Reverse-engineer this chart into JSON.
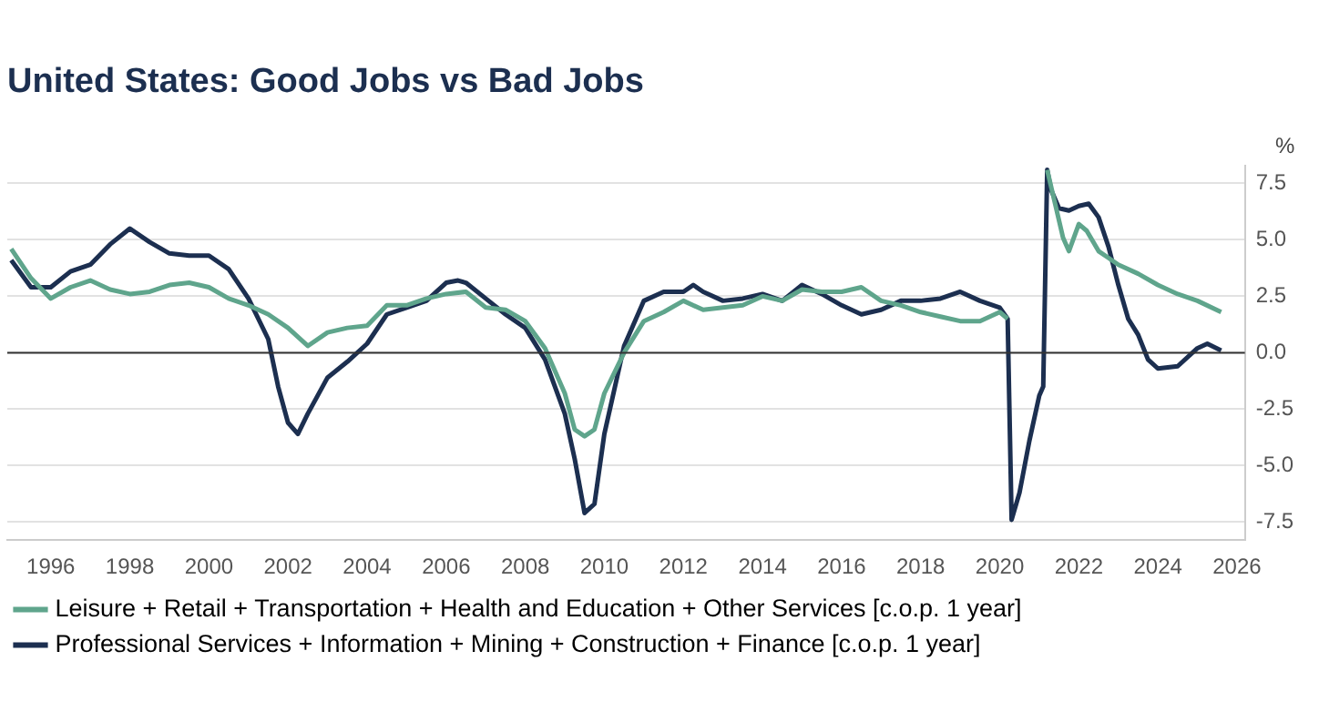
{
  "chart_data": {
    "type": "line",
    "title": "United States: Good Jobs vs Bad Jobs",
    "ylabel": "%",
    "xlim": [
      1994.9,
      2026.2
    ],
    "xticks": [
      1996,
      1998,
      2000,
      2002,
      2004,
      2006,
      2008,
      2010,
      2012,
      2014,
      2016,
      2018,
      2020,
      2022,
      2024,
      2026
    ],
    "ylim": [
      -8.3,
      8.3
    ],
    "yticks": [
      {
        "value": -7.5,
        "label": "-7.5"
      },
      {
        "value": -5,
        "label": "-5.0"
      },
      {
        "value": -2.5,
        "label": "-2.5"
      },
      {
        "value": 0,
        "label": "0.0"
      },
      {
        "value": 2.5,
        "label": "2.5"
      },
      {
        "value": 5,
        "label": "5.0"
      },
      {
        "value": 7.5,
        "label": "7.5"
      }
    ],
    "grid": "y",
    "legend": "bottom",
    "marker": "none",
    "line_style": "solid",
    "ref_lines": [
      {
        "axis": "y",
        "value": 0,
        "color": "#333333"
      }
    ],
    "series": [
      {
        "name": "Leisure + Retail + Transportation + Health and Education + Other Services [c.o.p. 1 year]",
        "color": "#5fa58c",
        "x": [
          1995.0,
          1995.5,
          1996.0,
          1996.5,
          1997.0,
          1997.5,
          1998.0,
          1998.5,
          1999.0,
          1999.5,
          2000.0,
          2000.5,
          2001.0,
          2001.5,
          2002.0,
          2002.5,
          2003.0,
          2003.5,
          2004.0,
          2004.5,
          2005.0,
          2005.5,
          2006.0,
          2006.5,
          2007.0,
          2007.5,
          2008.0,
          2008.5,
          2009.0,
          2009.25,
          2009.5,
          2009.75,
          2010.0,
          2010.5,
          2011.0,
          2011.5,
          2012.0,
          2012.5,
          2013.0,
          2013.5,
          2014.0,
          2014.5,
          2015.0,
          2015.5,
          2016.0,
          2016.5,
          2017.0,
          2017.5,
          2018.0,
          2018.5,
          2019.0,
          2019.5,
          2020.0,
          2020.2,
          2020.3,
          2021.2,
          2021.4,
          2021.6,
          2021.75,
          2022.0,
          2022.2,
          2022.5,
          2022.75,
          2023.0,
          2023.5,
          2024.0,
          2024.5,
          2025.0,
          2025.6
        ],
        "values": [
          4.6,
          3.3,
          2.4,
          2.9,
          3.2,
          2.8,
          2.6,
          2.7,
          3.0,
          3.1,
          2.9,
          2.4,
          2.1,
          1.7,
          1.1,
          0.3,
          0.9,
          1.1,
          1.2,
          2.1,
          2.1,
          2.4,
          2.6,
          2.7,
          2.0,
          1.9,
          1.4,
          0.2,
          -1.8,
          -3.4,
          -3.7,
          -3.4,
          -1.8,
          0.0,
          1.4,
          1.8,
          2.3,
          1.9,
          2.0,
          2.1,
          2.5,
          2.3,
          2.8,
          2.7,
          2.7,
          2.9,
          2.3,
          2.1,
          1.8,
          1.6,
          1.4,
          1.4,
          1.8,
          1.5,
          null,
          8.1,
          6.6,
          5.1,
          4.5,
          5.7,
          5.4,
          4.5,
          4.2,
          3.9,
          3.5,
          3.0,
          2.6,
          2.3,
          1.8
        ]
      },
      {
        "name": "Professional Services + Information + Mining + Construction + Finance [c.o.p. 1 year]",
        "color": "#1c2f50",
        "x": [
          1995.0,
          1995.5,
          1996.0,
          1996.5,
          1997.0,
          1997.5,
          1998.0,
          1998.5,
          1999.0,
          1999.5,
          2000.0,
          2000.5,
          2001.0,
          2001.5,
          2001.75,
          2002.0,
          2002.25,
          2002.5,
          2003.0,
          2003.5,
          2004.0,
          2004.5,
          2005.0,
          2005.5,
          2006.0,
          2006.3,
          2006.5,
          2007.0,
          2007.5,
          2008.0,
          2008.5,
          2009.0,
          2009.25,
          2009.5,
          2009.75,
          2010.0,
          2010.5,
          2011.0,
          2011.5,
          2012.0,
          2012.25,
          2012.5,
          2013.0,
          2013.5,
          2014.0,
          2014.5,
          2015.0,
          2015.5,
          2016.0,
          2016.5,
          2017.0,
          2017.5,
          2018.0,
          2018.5,
          2019.0,
          2019.5,
          2020.0,
          2020.2,
          2020.3,
          2020.5,
          2020.75,
          2021.0,
          2021.1,
          2021.2,
          2021.3,
          2021.5,
          2021.75,
          2022.0,
          2022.25,
          2022.5,
          2022.75,
          2023.0,
          2023.25,
          2023.5,
          2023.75,
          2024.0,
          2024.5,
          2025.0,
          2025.25,
          2025.6
        ],
        "values": [
          4.1,
          2.9,
          2.9,
          3.6,
          3.9,
          4.8,
          5.5,
          4.9,
          4.4,
          4.3,
          4.3,
          3.7,
          2.4,
          0.6,
          -1.5,
          -3.1,
          -3.6,
          -2.7,
          -1.1,
          -0.4,
          0.4,
          1.7,
          2.0,
          2.3,
          3.1,
          3.2,
          3.1,
          2.4,
          1.7,
          1.1,
          -0.3,
          -2.7,
          -4.7,
          -7.1,
          -6.7,
          -3.6,
          0.3,
          2.3,
          2.7,
          2.7,
          3.0,
          2.7,
          2.3,
          2.4,
          2.6,
          2.3,
          3.0,
          2.6,
          2.1,
          1.7,
          1.9,
          2.3,
          2.3,
          2.4,
          2.7,
          2.3,
          2.0,
          1.5,
          -7.4,
          -6.2,
          -3.9,
          -1.9,
          -1.5,
          8.1,
          7.2,
          6.4,
          6.3,
          6.5,
          6.6,
          6.0,
          4.7,
          3.0,
          1.5,
          0.8,
          -0.3,
          -0.7,
          -0.6,
          0.2,
          0.4,
          0.1
        ]
      }
    ]
  }
}
